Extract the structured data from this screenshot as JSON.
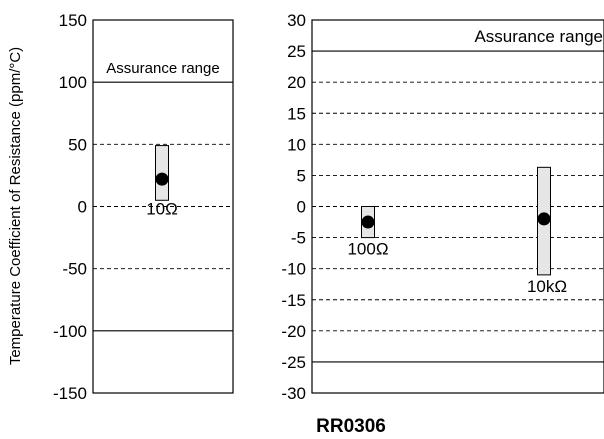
{
  "figure_title": "RR0306",
  "chart_data": [
    {
      "type": "range-plot",
      "ylabel": "Temperature Coefficient of Resistance (ppm/°C)",
      "ylim": [
        -150,
        150
      ],
      "yticks": [
        150,
        100,
        50,
        0,
        -50,
        -100,
        -150
      ],
      "grid": "dashed-horizontal",
      "assurance_range": {
        "label": "Assurance range",
        "limits": [
          -100,
          100
        ]
      },
      "series": [
        {
          "label": "10Ω",
          "mean": 22,
          "min": 5,
          "max": 49
        }
      ]
    },
    {
      "type": "range-plot",
      "ylim": [
        -30,
        30
      ],
      "yticks": [
        30,
        25,
        20,
        15,
        10,
        5,
        0,
        -5,
        -10,
        -15,
        -20,
        -25,
        -30
      ],
      "grid": "dashed-horizontal",
      "assurance_range": {
        "label": "Assurance range",
        "limits": [
          -25,
          25
        ]
      },
      "series": [
        {
          "label": "100Ω",
          "mean": -2.5,
          "min": -5,
          "max": 0
        },
        {
          "label": "10kΩ",
          "mean": -2,
          "min": -11,
          "max": 6.3
        }
      ]
    }
  ]
}
